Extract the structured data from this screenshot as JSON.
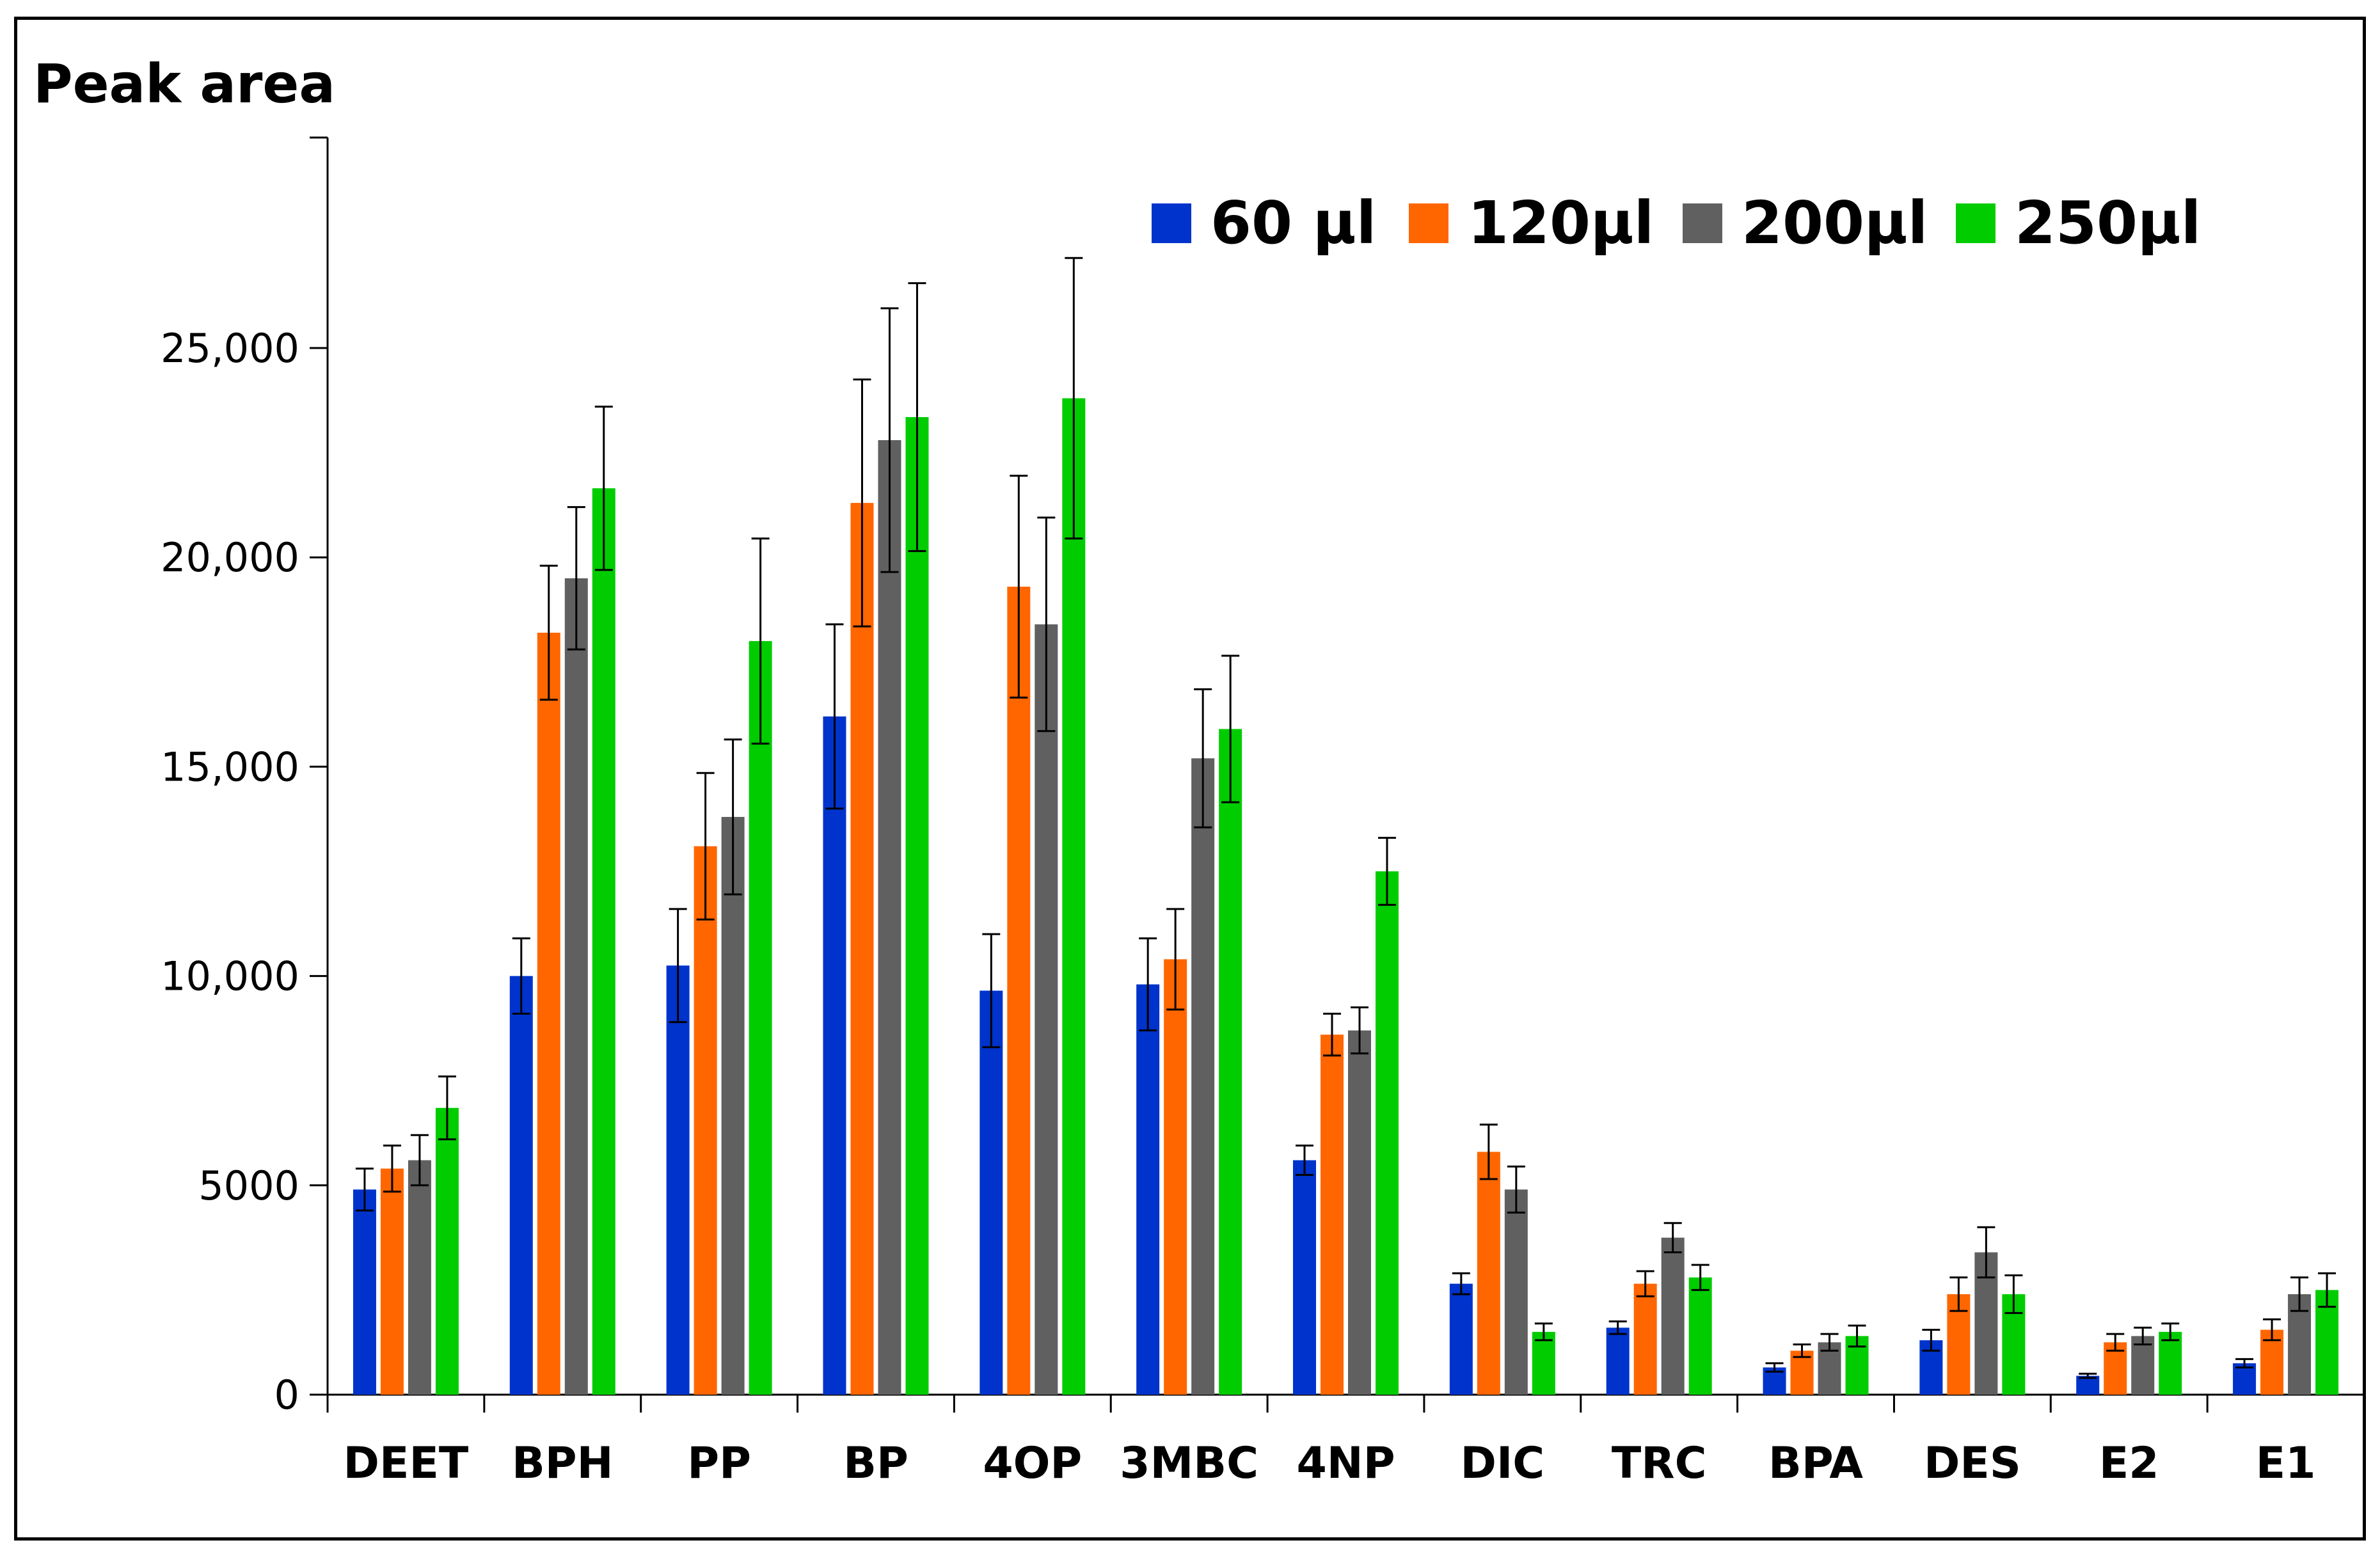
{
  "chart_data": {
    "type": "bar",
    "title": "",
    "ylabel": "Peak area",
    "xlabel": "",
    "ylim": [
      0,
      30000
    ],
    "yticks": [
      0,
      5000,
      10000,
      15000,
      20000,
      25000
    ],
    "ytick_labels": [
      "0",
      "5000",
      "10,000",
      "15,000",
      "20,000",
      "25,000"
    ],
    "categories": [
      "DEET",
      "BPH",
      "PP",
      "BP",
      "4OP",
      "3MBC",
      "4NP",
      "DIC",
      "TRC",
      "BPA",
      "DES",
      "E2",
      "E1"
    ],
    "legend_position": "top-right",
    "grid": false,
    "series": [
      {
        "name": "60 µl",
        "color": "#0033cc",
        "values": [
          4900,
          10000,
          10250,
          16200,
          9650,
          9800,
          5600,
          2650,
          1600,
          650,
          1300,
          450,
          750
        ],
        "errors": [
          500,
          900,
          1350,
          2200,
          1350,
          1100,
          350,
          250,
          150,
          100,
          250,
          50,
          100
        ]
      },
      {
        "name": "120µl",
        "color": "#ff6600",
        "values": [
          5400,
          18200,
          13100,
          21300,
          19300,
          10400,
          8600,
          5800,
          2650,
          1050,
          2400,
          1250,
          1550
        ]
      },
      {
        "name": "200µl",
        "color": "#606060",
        "values": [
          5600,
          19500,
          13800,
          22800,
          18400,
          15200,
          8700,
          4900,
          3750,
          1250,
          3400,
          1400,
          2400
        ]
      },
      {
        "name": "250µl",
        "color": "#00cc00",
        "values": [
          6850,
          21650,
          18000,
          23350,
          23800,
          15900,
          12500,
          1500,
          2800,
          1400,
          2400,
          1500,
          2500
        ]
      }
    ],
    "error_bars": {
      "60 µl": [
        500,
        900,
        1350,
        2200,
        1350,
        1100,
        350,
        250,
        150,
        100,
        250,
        50,
        100
      ],
      "120µl": [
        550,
        1600,
        1750,
        2950,
        2650,
        1200,
        500,
        650,
        300,
        150,
        400,
        200,
        250
      ],
      "200µl": [
        600,
        1700,
        1850,
        3150,
        2550,
        1650,
        550,
        550,
        350,
        200,
        600,
        200,
        400
      ],
      "250µl": [
        750,
        1950,
        2450,
        3200,
        3350,
        1750,
        800,
        200,
        300,
        250,
        450,
        200,
        400
      ]
    }
  }
}
